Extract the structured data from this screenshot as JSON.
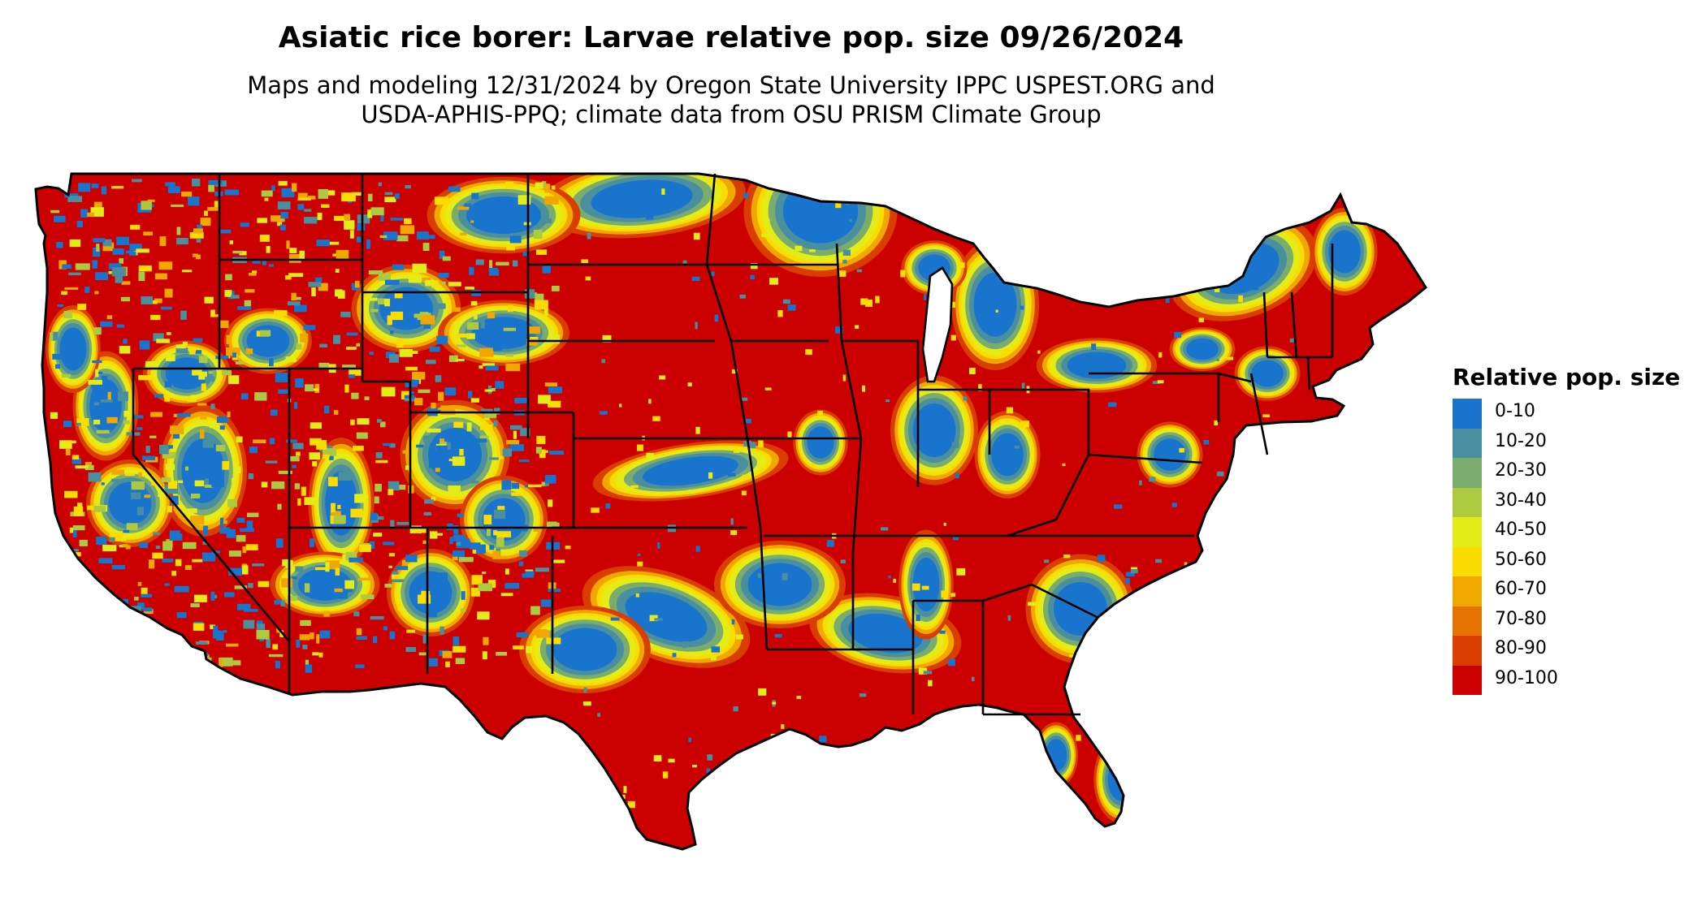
{
  "title": "Asiatic rice borer: Larvae relative pop. size 09/26/2024",
  "subtitle_line1": "Maps and modeling 12/31/2024 by Oregon State University IPPC USPEST.ORG and",
  "subtitle_line2": "USDA-APHIS-PPQ; climate data from OSU PRISM Climate Group",
  "legend": {
    "title": "Relative pop. size",
    "items": [
      {
        "label": "0-10",
        "color": "#1874cd"
      },
      {
        "label": "10-20",
        "color": "#4a8fa0"
      },
      {
        "label": "20-30",
        "color": "#7aac6e"
      },
      {
        "label": "30-40",
        "color": "#acc940"
      },
      {
        "label": "40-50",
        "color": "#e3ec17"
      },
      {
        "label": "50-60",
        "color": "#fadc00"
      },
      {
        "label": "60-70",
        "color": "#f0a800"
      },
      {
        "label": "70-80",
        "color": "#e47300"
      },
      {
        "label": "80-90",
        "color": "#d93d00"
      },
      {
        "label": "90-100",
        "color": "#cc0000"
      }
    ]
  },
  "map": {
    "region": "Contiguous United States",
    "state_border_color": "#000000",
    "ocean_color": "#ffffff"
  }
}
